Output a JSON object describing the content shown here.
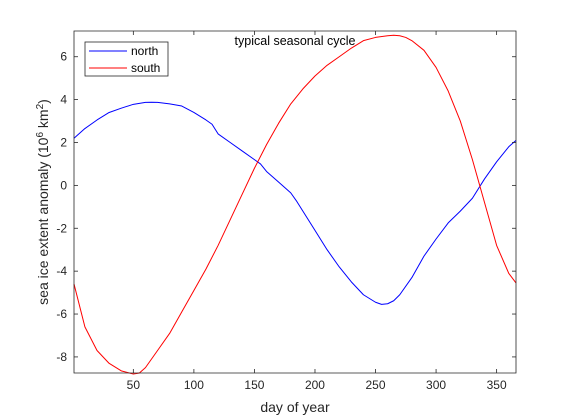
{
  "chart_data": {
    "type": "line",
    "title": "typical seasonal cycle",
    "xlabel": "day of year",
    "ylabel": "sea ice extent anomaly (10",
    "ylabel_sup": "6",
    "ylabel_unit": " km",
    "ylabel_unit_sup": "2",
    "ylabel_close": ")",
    "xlim": [
      1,
      366
    ],
    "ylim": [
      -8.75,
      7.2
    ],
    "xticks": [
      50,
      100,
      150,
      200,
      250,
      300,
      350
    ],
    "yticks": [
      -8,
      -6,
      -4,
      -2,
      0,
      2,
      4,
      6
    ],
    "grid": false,
    "legend": {
      "position": "top-left"
    },
    "series": [
      {
        "name": "north",
        "color": "#0000ff",
        "x": [
          1,
          10,
          20,
          30,
          40,
          50,
          60,
          65,
          70,
          80,
          90,
          100,
          110,
          115,
          120,
          130,
          140,
          150,
          155,
          160,
          170,
          180,
          185,
          190,
          200,
          210,
          220,
          230,
          240,
          250,
          255,
          260,
          265,
          270,
          280,
          290,
          300,
          310,
          320,
          330,
          340,
          350,
          360,
          366
        ],
        "y": [
          2.2,
          2.65,
          3.05,
          3.4,
          3.6,
          3.78,
          3.87,
          3.88,
          3.87,
          3.8,
          3.7,
          3.4,
          3.05,
          2.85,
          2.4,
          2.0,
          1.6,
          1.2,
          1.0,
          0.65,
          0.15,
          -0.35,
          -0.75,
          -1.2,
          -2.1,
          -3.0,
          -3.8,
          -4.5,
          -5.1,
          -5.45,
          -5.55,
          -5.52,
          -5.38,
          -5.1,
          -4.3,
          -3.3,
          -2.5,
          -1.75,
          -1.2,
          -0.6,
          0.3,
          1.1,
          1.8,
          2.1
        ]
      },
      {
        "name": "south",
        "color": "#ff0000",
        "x": [
          1,
          10,
          20,
          30,
          40,
          50,
          55,
          60,
          70,
          80,
          90,
          100,
          110,
          120,
          130,
          140,
          150,
          160,
          170,
          180,
          190,
          200,
          210,
          220,
          230,
          240,
          250,
          260,
          265,
          270,
          275,
          280,
          290,
          300,
          310,
          320,
          330,
          340,
          350,
          360,
          366
        ],
        "y": [
          -4.6,
          -6.6,
          -7.7,
          -8.3,
          -8.65,
          -8.8,
          -8.75,
          -8.5,
          -7.7,
          -6.9,
          -5.9,
          -4.9,
          -3.9,
          -2.8,
          -1.6,
          -0.4,
          0.8,
          1.9,
          2.9,
          3.8,
          4.5,
          5.1,
          5.6,
          6.0,
          6.4,
          6.75,
          6.9,
          6.98,
          7.0,
          6.98,
          6.9,
          6.75,
          6.3,
          5.5,
          4.4,
          3.0,
          1.2,
          -0.8,
          -2.8,
          -4.1,
          -4.55
        ]
      }
    ]
  }
}
